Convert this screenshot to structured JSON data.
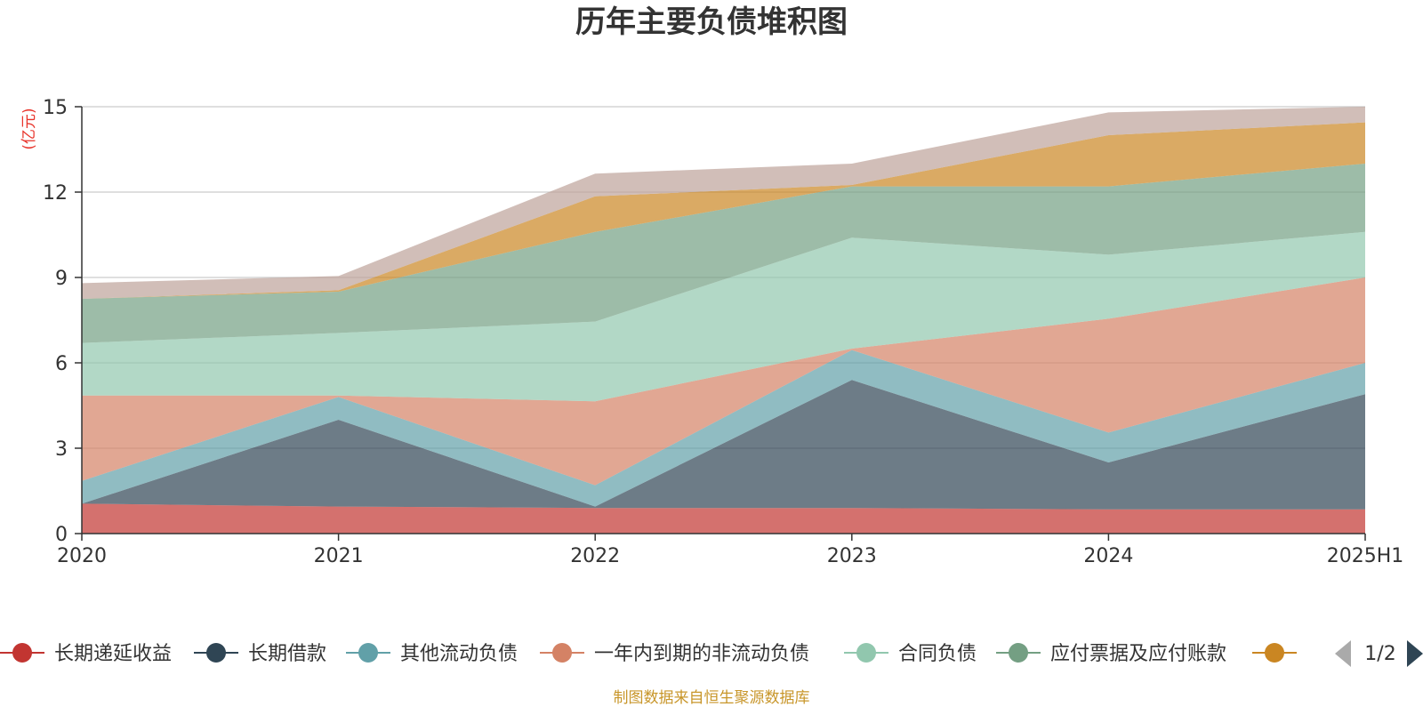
{
  "footer": {
    "source": "制图数据来自恒生聚源数据库"
  },
  "legend_nav": {
    "page": "1/2"
  },
  "colors": {
    "title": "#333333",
    "axis": "#333333",
    "grid": "#cccccc",
    "unit": "#e8332a",
    "source": "#c8962a",
    "nav_active": "#2f4554",
    "nav_inactive": "#aaaaaa"
  },
  "chart_data": {
    "type": "area",
    "stacked": true,
    "title": "历年主要负债堆积图",
    "ylabel": "(亿元)",
    "xlabel": "",
    "categories": [
      "2020",
      "2021",
      "2022",
      "2023",
      "2024",
      "2025H1"
    ],
    "ylim": [
      0,
      15
    ],
    "yticks": [
      0,
      3,
      6,
      9,
      12,
      15
    ],
    "grid": true,
    "legend_position": "bottom",
    "legend_page": "1/2",
    "series": [
      {
        "name": "长期递延收益",
        "color": "#c23531",
        "values": [
          1.05,
          0.95,
          0.9,
          0.9,
          0.85,
          0.85
        ]
      },
      {
        "name": "长期借款",
        "color": "#2f4554",
        "values": [
          0.0,
          3.05,
          0.05,
          4.5,
          1.65,
          4.05
        ]
      },
      {
        "name": "其他流动负债",
        "color": "#61a0a8",
        "values": [
          0.8,
          0.8,
          0.75,
          1.05,
          1.05,
          1.1
        ]
      },
      {
        "name": "一年内到期的非流动负债",
        "color": "#d48265",
        "values": [
          3.0,
          0.05,
          2.95,
          0.05,
          4.0,
          3.0
        ]
      },
      {
        "name": "合同负债",
        "color": "#91c7ae",
        "values": [
          1.85,
          2.2,
          2.8,
          3.9,
          2.25,
          1.6
        ]
      },
      {
        "name": "应付票据及应付账款",
        "color": "#749f83",
        "values": [
          1.55,
          1.45,
          3.15,
          1.8,
          2.4,
          2.4
        ]
      },
      {
        "name": "",
        "color": "#ca8622",
        "values": [
          0.0,
          0.05,
          1.25,
          0.05,
          1.8,
          1.45
        ]
      },
      {
        "name": "",
        "color": "#bda29a",
        "values": [
          0.55,
          0.5,
          0.8,
          0.75,
          0.8,
          0.55
        ]
      }
    ]
  }
}
